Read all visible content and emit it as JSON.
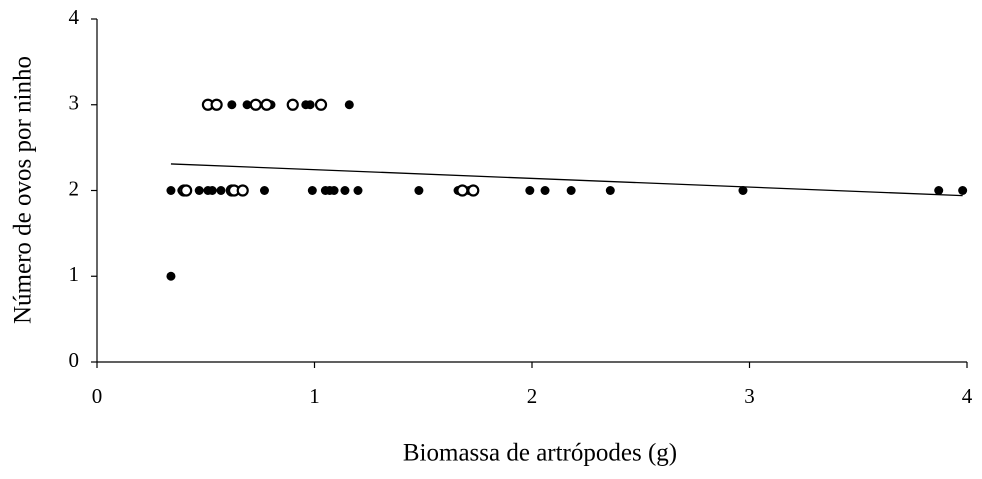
{
  "chart_data": {
    "type": "scatter",
    "xlabel": "Biomassa de artrópodes (g)",
    "ylabel": "Número de ovos por ninho",
    "xlim": [
      0,
      4
    ],
    "ylim": [
      0,
      4
    ],
    "xticks": [
      0,
      1,
      2,
      3,
      4
    ],
    "yticks": [
      0,
      1,
      2,
      3,
      4
    ],
    "grid": false,
    "series": [
      {
        "color": "#000000",
        "filled": true,
        "x": [
          0.34,
          0.39,
          0.47,
          0.51,
          0.53,
          0.57,
          0.62,
          0.64,
          0.77,
          0.99,
          1.05,
          1.07,
          1.09,
          1.14,
          1.2,
          1.48,
          1.66,
          1.67,
          1.68,
          1.71,
          1.99,
          2.06,
          2.18,
          2.36,
          2.97,
          3.87,
          3.98,
          0.62,
          0.69,
          0.78,
          0.8,
          0.96,
          0.98,
          1.16,
          0.34
        ],
        "values": [
          2,
          2,
          2,
          2,
          2,
          2,
          2,
          2,
          2,
          2,
          2,
          2,
          2,
          2,
          2,
          2,
          2,
          2,
          2,
          2,
          2,
          2,
          2,
          2,
          2,
          2,
          2,
          3,
          3,
          3,
          3,
          3,
          3,
          3,
          1
        ]
      },
      {
        "color": "#000000",
        "filled": false,
        "x": [
          0.51,
          0.55,
          0.73,
          0.78,
          0.9,
          1.03,
          0.4,
          0.41,
          0.62,
          0.63,
          0.67,
          1.68,
          1.73
        ],
        "values": [
          3,
          3,
          3,
          3,
          3,
          3,
          2,
          2,
          2,
          2,
          2,
          2,
          2
        ]
      }
    ],
    "trendline": {
      "color": "#000000",
      "x": [
        0.34,
        3.98
      ],
      "values": [
        2.31,
        1.94
      ]
    }
  }
}
